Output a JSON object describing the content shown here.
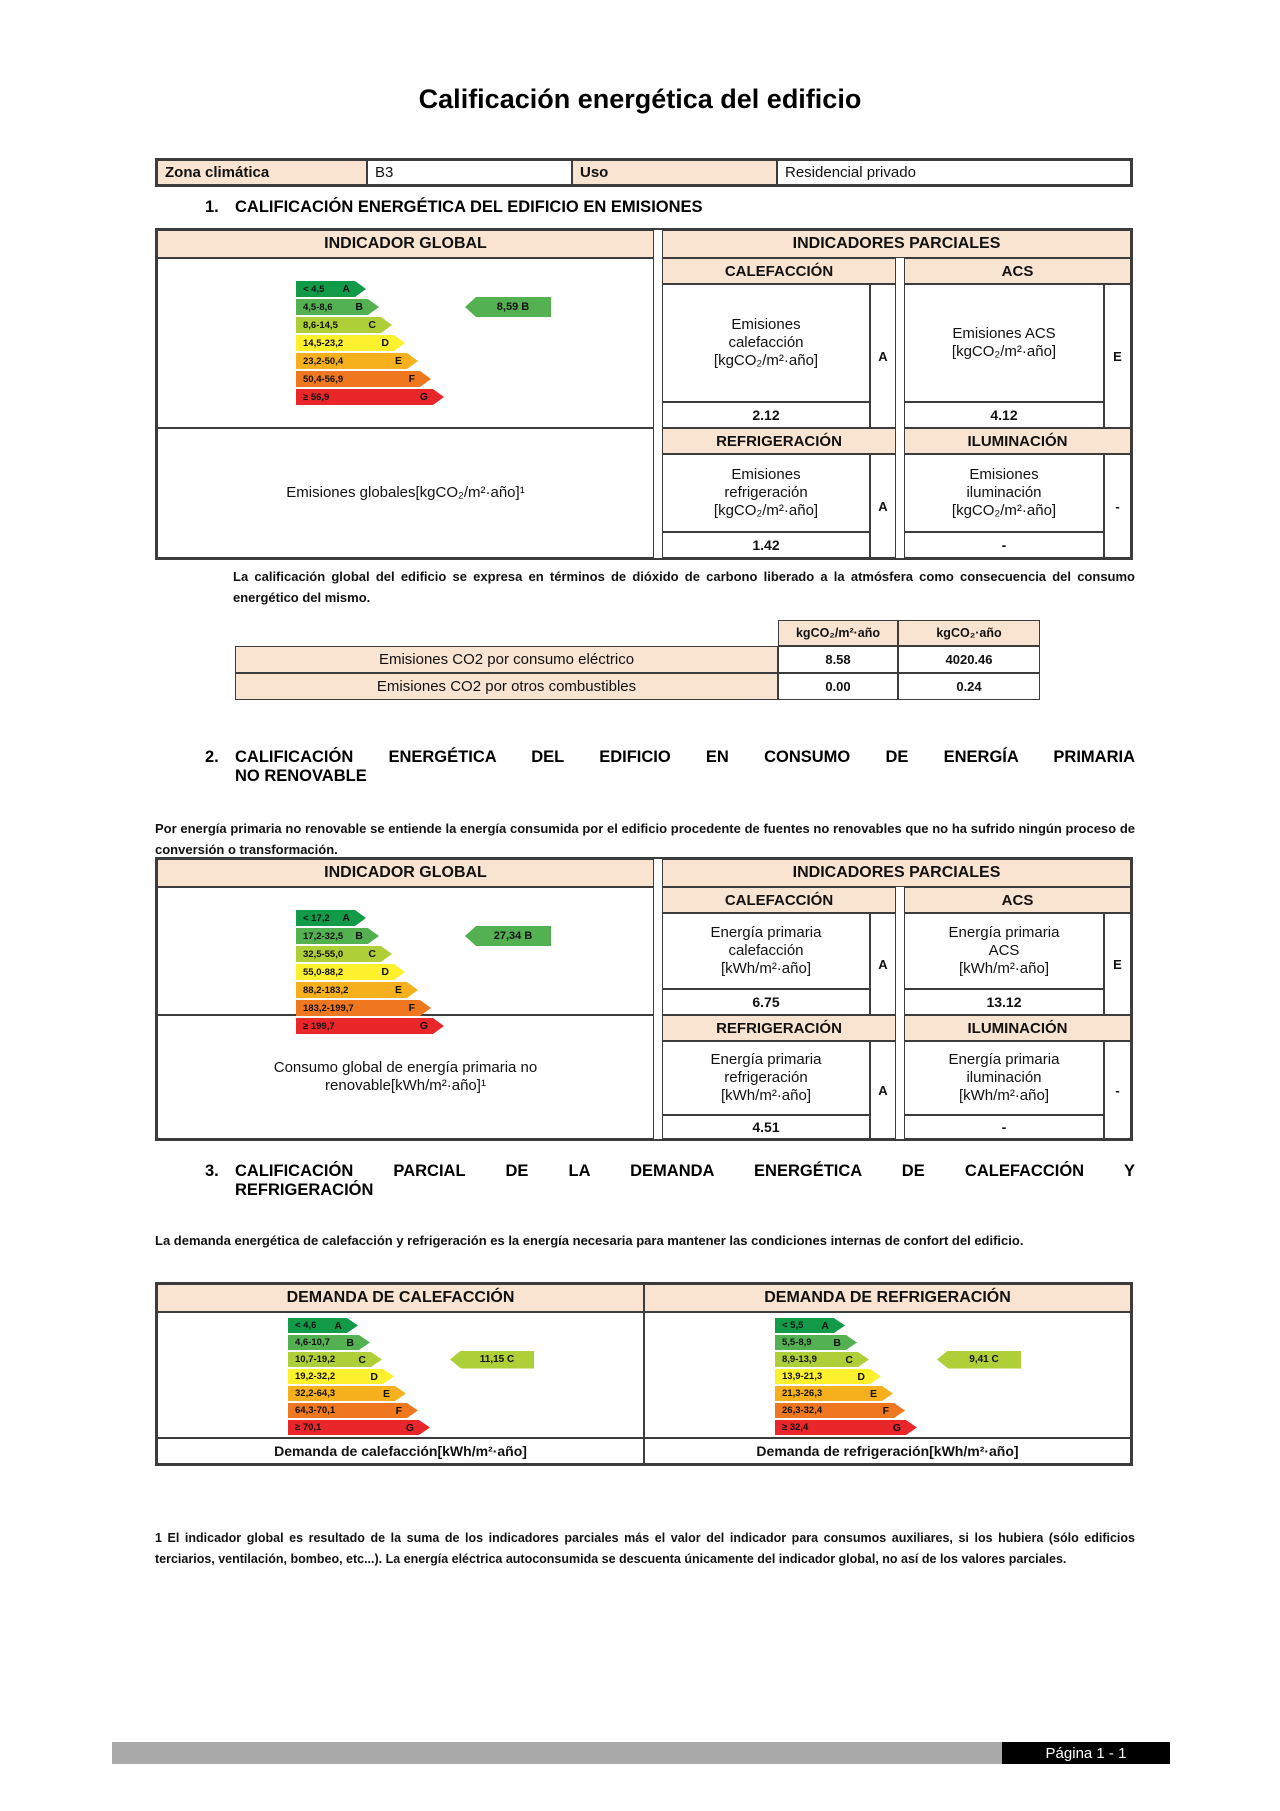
{
  "title": "Calificación energética del edificio",
  "meta": {
    "zona_label": "Zona climática",
    "zona_value": "B3",
    "uso_label": "Uso",
    "uso_value": "Residencial privado"
  },
  "palette": {
    "band_colors": [
      "#119a48",
      "#53b152",
      "#aecf38",
      "#fdf02c",
      "#f6b01e",
      "#ef771f",
      "#e9262a"
    ],
    "header_bg": "#f9e4d1",
    "footer_bar": "#a9a9a9",
    "footer_box": "#000000"
  },
  "s1": {
    "number": "1.",
    "title": "CALIFICACIÓN ENERGÉTICA DEL EDIFICIO EN EMISIONES",
    "global_header": "INDICADOR GLOBAL",
    "partials_header": "INDICADORES PARCIALES",
    "scale": {
      "bands": [
        {
          "range": "< 4,5",
          "letter": "A"
        },
        {
          "range": "4,5-8,6",
          "letter": "B"
        },
        {
          "range": "8,6-14,5",
          "letter": "C"
        },
        {
          "range": "14,5-23,2",
          "letter": "D"
        },
        {
          "range": "23,2-50,4",
          "letter": "E"
        },
        {
          "range": "50,4-56,9",
          "letter": "F"
        },
        {
          "range": "≥ 56,9",
          "letter": "G"
        }
      ],
      "rating": {
        "label": "8,59 B",
        "band": "B"
      }
    },
    "global_label": "Emisiones globales[kgCO₂/m²·año]¹",
    "groups": {
      "calefaccion": {
        "header": "CALEFACCIÓN",
        "label": "Emisiones\ncalefacción\n[kgCO₂/m²·año]",
        "letter": "A",
        "value": "2.12"
      },
      "acs": {
        "header": "ACS",
        "label": "Emisiones ACS\n[kgCO₂/m²·año]",
        "letter": "E",
        "value": "4.12"
      },
      "refrigeracion": {
        "header": "REFRIGERACIÓN",
        "label": "Emisiones\nrefrigeración\n[kgCO₂/m²·año]",
        "letter": "A",
        "value": "1.42"
      },
      "iluminacion": {
        "header": "ILUMINACIÓN",
        "label": "Emisiones\niluminación\n[kgCO₂/m²·año]",
        "letter": "-",
        "value": "-"
      }
    },
    "note": "La calificación global del edificio se expresa en términos de dióxido de carbono liberado a la atmósfera como consecuencia del consumo energético del mismo."
  },
  "co2_table": {
    "columns": [
      "kgCO₂/m²·año",
      "kgCO₂·año"
    ],
    "rows": [
      {
        "label": "Emisiones CO2 por consumo eléctrico",
        "v1": "8.58",
        "v2": "4020.46"
      },
      {
        "label": "Emisiones CO2 por otros combustibles",
        "v1": "0.00",
        "v2": "0.24"
      }
    ]
  },
  "s2": {
    "number": "2.",
    "title_line1": "CALIFICACIÓN ENERGÉTICA DEL EDIFICIO EN CONSUMO DE ENERGÍA PRIMARIA",
    "title_line2": "NO RENOVABLE",
    "intro": "Por energía primaria no renovable se entiende la energía consumida por el edificio procedente de fuentes no renovables que no ha sufrido ningún proceso de conversión o transformación.",
    "global_header": "INDICADOR GLOBAL",
    "partials_header": "INDICADORES PARCIALES",
    "scale": {
      "bands": [
        {
          "range": "< 17,2",
          "letter": "A"
        },
        {
          "range": "17,2-32,5",
          "letter": "B"
        },
        {
          "range": "32,5-55,0",
          "letter": "C"
        },
        {
          "range": "55,0-88,2",
          "letter": "D"
        },
        {
          "range": "88,2-183,2",
          "letter": "E"
        },
        {
          "range": "183,2-199,7",
          "letter": "F"
        },
        {
          "range": "≥ 199,7",
          "letter": "G"
        }
      ],
      "rating": {
        "label": "27,34 B",
        "band": "B"
      }
    },
    "global_label": "Consumo global de energía primaria no\nrenovable[kWh/m²·año]¹",
    "groups": {
      "calefaccion": {
        "header": "CALEFACCIÓN",
        "label": "Energía primaria\ncalefacción\n[kWh/m²·año]",
        "letter": "A",
        "value": "6.75"
      },
      "acs": {
        "header": "ACS",
        "label": "Energía primaria\nACS\n[kWh/m²·año]",
        "letter": "E",
        "value": "13.12"
      },
      "refrigeracion": {
        "header": "REFRIGERACIÓN",
        "label": "Energía primaria\nrefrigeración\n[kWh/m²·año]",
        "letter": "A",
        "value": "4.51"
      },
      "iluminacion": {
        "header": "ILUMINACIÓN",
        "label": "Energía primaria\niluminación\n[kWh/m²·año]",
        "letter": "-",
        "value": "-"
      }
    }
  },
  "s3": {
    "number": "3.",
    "title_line1": "CALIFICACIÓN PARCIAL DE LA DEMANDA ENERGÉTICA DE CALEFACCIÓN Y",
    "title_line2": "REFRIGERACIÓN",
    "intro": "La demanda energética de calefacción y refrigeración es la energía necesaria para mantener las condiciones internas de confort del edificio.",
    "calefaccion": {
      "header": "DEMANDA DE CALEFACCIÓN",
      "caption": "Demanda de calefacción[kWh/m²·año]",
      "scale": {
        "bands": [
          {
            "range": "< 4,6",
            "letter": "A"
          },
          {
            "range": "4,6-10,7",
            "letter": "B"
          },
          {
            "range": "10,7-19,2",
            "letter": "C"
          },
          {
            "range": "19,2-32,2",
            "letter": "D"
          },
          {
            "range": "32,2-64,3",
            "letter": "E"
          },
          {
            "range": "64,3-70,1",
            "letter": "F"
          },
          {
            "range": "≥ 70,1",
            "letter": "G"
          }
        ],
        "rating": {
          "label": "11,15 C",
          "band": "C"
        }
      }
    },
    "refrigeracion": {
      "header": "DEMANDA DE REFRIGERACIÓN",
      "caption": "Demanda de refrigeración[kWh/m²·año]",
      "scale": {
        "bands": [
          {
            "range": "< 5,5",
            "letter": "A"
          },
          {
            "range": "5,5-8,9",
            "letter": "B"
          },
          {
            "range": "8,9-13,9",
            "letter": "C"
          },
          {
            "range": "13,9-21,3",
            "letter": "D"
          },
          {
            "range": "21,3-26,3",
            "letter": "E"
          },
          {
            "range": "26,3-32,4",
            "letter": "F"
          },
          {
            "range": "≥ 32,4",
            "letter": "G"
          }
        ],
        "rating": {
          "label": "9,41 C",
          "band": "C"
        }
      }
    }
  },
  "footnote": "1 El indicador global es resultado de la suma de los indicadores parciales más el valor del indicador para consumos auxiliares, si los hubiera (sólo edificios terciarios, ventilación, bombeo, etc...). La energía eléctrica autoconsumida se descuenta únicamente del indicador global, no así de los valores parciales.",
  "footer": {
    "page_label": "Página 1 - 1"
  }
}
